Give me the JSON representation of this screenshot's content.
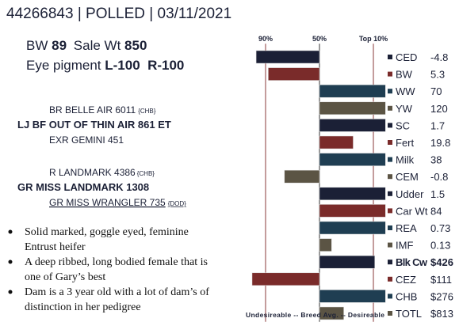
{
  "header": {
    "id_line": "44266843 | POLLED | 03/11/2021"
  },
  "stats": [
    {
      "label": "BW",
      "value": "89"
    },
    {
      "label": "Sale Wt",
      "value": "850"
    }
  ],
  "eye_pigment": {
    "label": "Eye pigment",
    "value": "L-100  R-100"
  },
  "pedigree": {
    "sire_sire": {
      "name": "BR BELLE AIR 6011",
      "tag": "{CHB}"
    },
    "sire": {
      "name": "LJ BF OUT OF THIN AIR 861 ET"
    },
    "sire_dam": {
      "name": "EXR GEMINI 451"
    },
    "dam_sire": {
      "name": "R LANDMARK 4386",
      "tag": "{CHB}"
    },
    "dam": {
      "name": "GR MISS LANDMARK 1308"
    },
    "dam_dam": {
      "name": "GR MISS WRANGLER 735",
      "tag": "{DOD}"
    }
  },
  "bullets": [
    [
      "Solid marked, goggle eyed, feminine",
      "Entrust heifer"
    ],
    [
      "A deep ribbed, long bodied female that is",
      "one of Gary’s best"
    ],
    [
      "Dam is a 3 year old with a lot of dam’s of",
      "distinction in her pedigree"
    ]
  ],
  "chart_data": {
    "type": "bar",
    "orientation": "horizontal",
    "categories": [
      "CED",
      "BW",
      "WW",
      "YW",
      "SC",
      "Fert",
      "Milk",
      "CEM",
      "Udder",
      "Car Wt",
      "REA",
      "IMF",
      "Blk Cw",
      "CEZ",
      "CHB",
      "TOTL"
    ],
    "values": [
      97,
      88,
      1,
      1,
      1,
      25,
      1,
      76,
      1,
      1,
      1,
      41,
      9,
      100,
      1,
      32
    ],
    "epds": [
      "-4.8",
      "5.3",
      "70",
      "120",
      "1.7",
      "19.8",
      "38",
      "-0.8",
      "1.5",
      "84",
      "0.73",
      "0.13",
      "$426",
      "$111",
      "$276",
      "$813"
    ],
    "colors": [
      "#1b2036",
      "#7a2b2a",
      "#1f3e52",
      "#5b5444",
      "#1b2036",
      "#7a2b2a",
      "#1f3e52",
      "#5b5444",
      "#1b2036",
      "#7a2b2a",
      "#1f3e52",
      "#5b5444",
      "#1b2036",
      "#7a2b2a",
      "#1f3e52",
      "#5b5444"
    ],
    "bold_category": "Blk Cw",
    "base": 50,
    "xlim": [
      100,
      0
    ],
    "xticks": [
      {
        "value": 90,
        "label": "90%"
      },
      {
        "value": 50,
        "label": "50%"
      },
      {
        "value": 10,
        "label": "Top 10%"
      }
    ],
    "grid": true,
    "xlabel": "Undesireable -- Breed Avg. --  Desireable"
  }
}
